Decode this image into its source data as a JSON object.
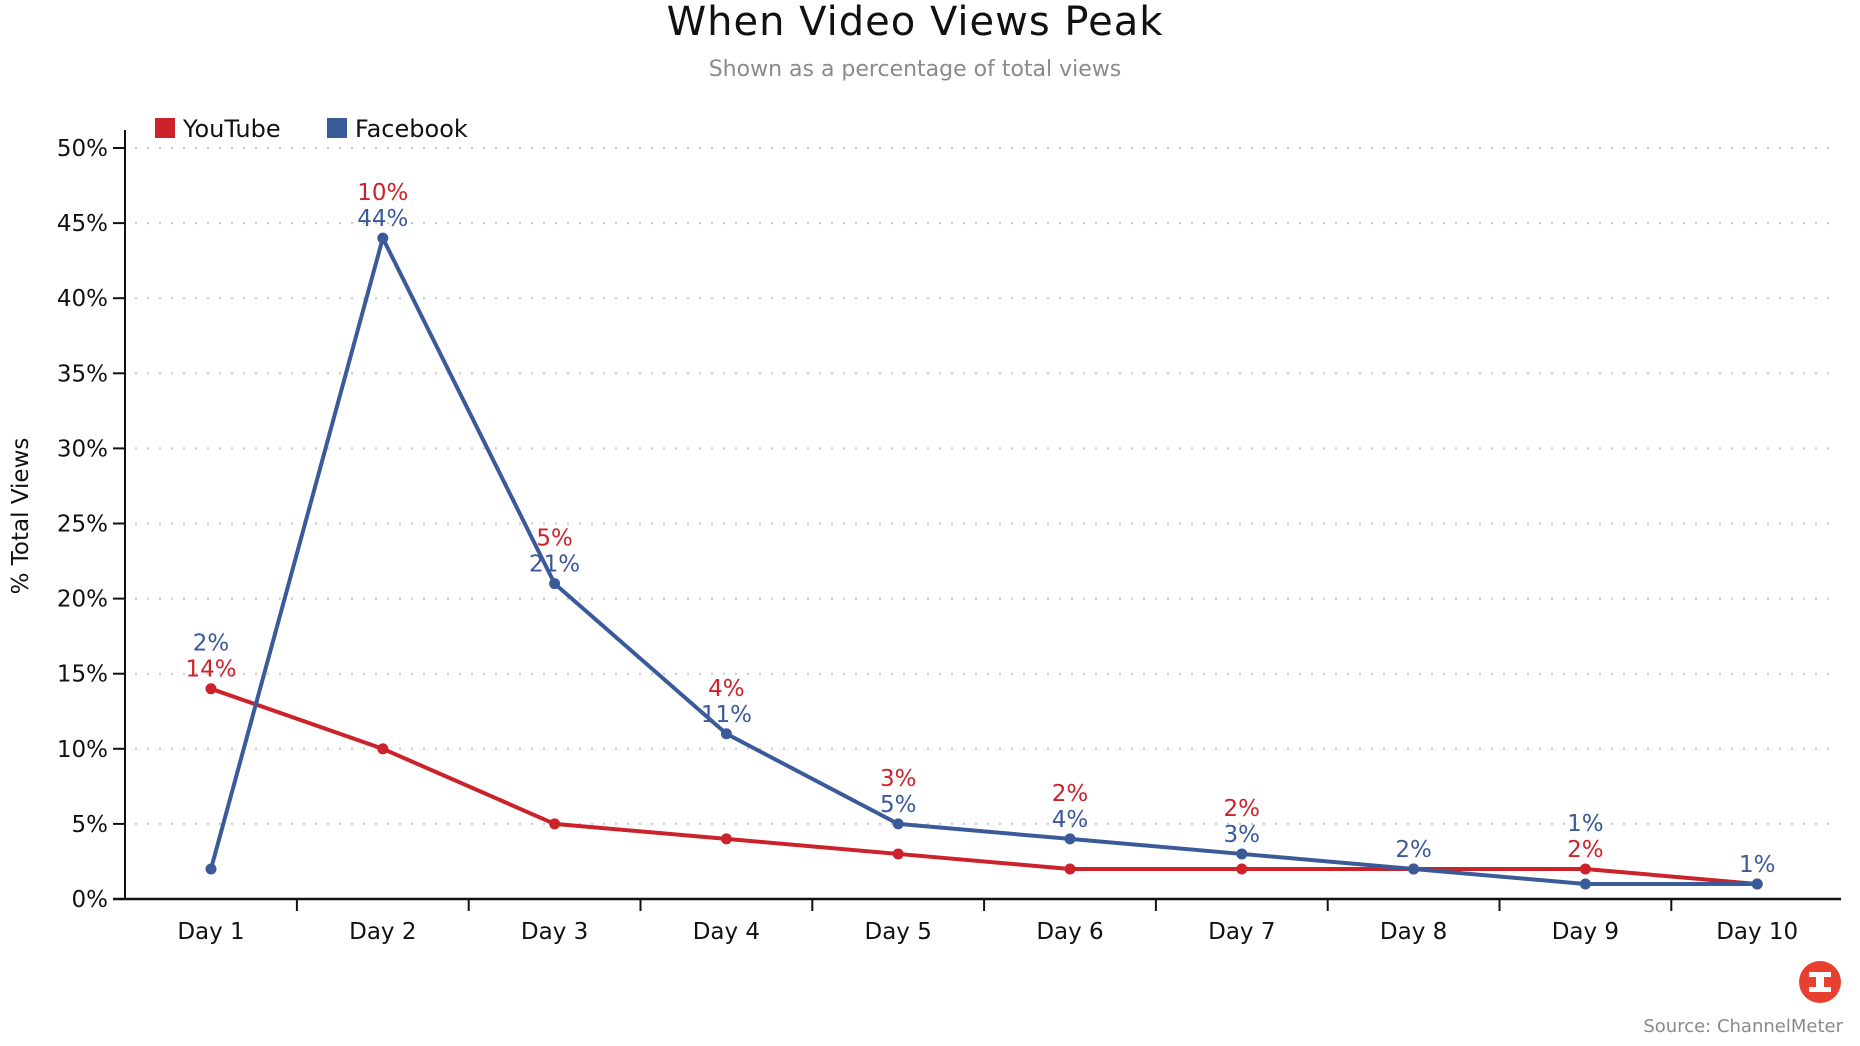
{
  "chart_data": {
    "type": "line",
    "title": "When Video Views Peak",
    "subtitle": "Shown as a percentage of total views",
    "xlabel": "",
    "ylabel": "% Total Views",
    "categories": [
      "Day 1",
      "Day 2",
      "Day 3",
      "Day 4",
      "Day 5",
      "Day 6",
      "Day 7",
      "Day 8",
      "Day 9",
      "Day 10"
    ],
    "ylim": [
      0,
      50
    ],
    "yticks": [
      0,
      5,
      10,
      15,
      20,
      25,
      30,
      35,
      40,
      45,
      50
    ],
    "ytick_labels": [
      "0%",
      "5%",
      "10%",
      "15%",
      "20%",
      "25%",
      "30%",
      "35%",
      "40%",
      "45%",
      "50%"
    ],
    "grid": "horizontal-dotted",
    "legend_position": "top-left",
    "series": [
      {
        "name": "YouTube",
        "color": "#cc2229",
        "values": [
          14,
          10,
          5,
          4,
          3,
          2,
          2,
          2,
          2,
          1
        ],
        "labels": [
          "14%",
          "10%",
          "5%",
          "4%",
          "3%",
          "2%",
          "2%",
          "",
          "2%",
          ""
        ]
      },
      {
        "name": "Facebook",
        "color": "#3a5a9a",
        "values": [
          2,
          44,
          21,
          11,
          5,
          4,
          3,
          2,
          1,
          1
        ],
        "labels": [
          "2%",
          "44%",
          "21%",
          "11%",
          "5%",
          "4%",
          "3%",
          "2%",
          "1%",
          "1%"
        ]
      }
    ],
    "source": "Source: ChannelMeter"
  },
  "branding": {
    "logo_icon": "infogram-logo-icon",
    "logo_color": "#e8402f"
  }
}
